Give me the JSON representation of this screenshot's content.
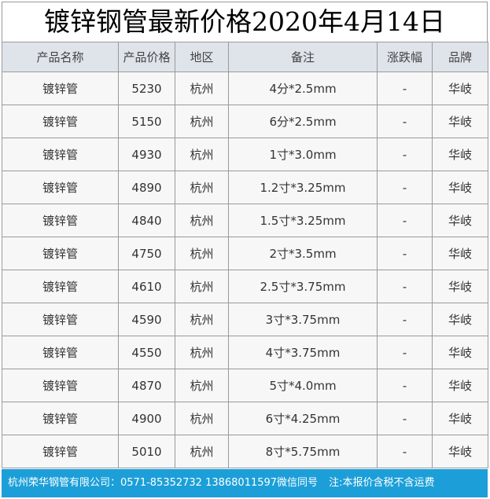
{
  "title": "镀锌钢管最新价格2020年4月14日",
  "table": {
    "headers": [
      "产品名称",
      "产品价格",
      "地区",
      "备注",
      "涨跌幅",
      "品牌"
    ],
    "rows": [
      [
        "镀锌管",
        "5230",
        "杭州",
        "4分*2.5mm",
        "-",
        "华岐"
      ],
      [
        "镀锌管",
        "5150",
        "杭州",
        "6分*2.5mm",
        "-",
        "华岐"
      ],
      [
        "镀锌管",
        "4930",
        "杭州",
        "1寸*3.0mm",
        "-",
        "华岐"
      ],
      [
        "镀锌管",
        "4890",
        "杭州",
        "1.2寸*3.25mm",
        "-",
        "华岐"
      ],
      [
        "镀锌管",
        "4840",
        "杭州",
        "1.5寸*3.25mm",
        "-",
        "华岐"
      ],
      [
        "镀锌管",
        "4750",
        "杭州",
        "2寸*3.5mm",
        "-",
        "华岐"
      ],
      [
        "镀锌管",
        "4610",
        "杭州",
        "2.5寸*3.75mm",
        "-",
        "华岐"
      ],
      [
        "镀锌管",
        "4590",
        "杭州",
        "3寸*3.75mm",
        "-",
        "华岐"
      ],
      [
        "镀锌管",
        "4550",
        "杭州",
        "4寸*3.75mm",
        "-",
        "华岐"
      ],
      [
        "镀锌管",
        "4870",
        "杭州",
        "5寸*4.0mm",
        "-",
        "华岐"
      ],
      [
        "镀锌管",
        "4900",
        "杭州",
        "6寸*4.25mm",
        "-",
        "华岐"
      ],
      [
        "镀锌管",
        "5010",
        "杭州",
        "8寸*5.75mm",
        "-",
        "华岐"
      ]
    ]
  },
  "footer": {
    "contact": "杭州荣华钢管有限公司：0571-85352732 13868011597微信同号",
    "note": "注:本报价含税不含运费"
  },
  "colors": {
    "header_bg": "#dfe3ea",
    "footer_bg": "#1c9fd8",
    "row_bg": "#f7f7f7"
  }
}
